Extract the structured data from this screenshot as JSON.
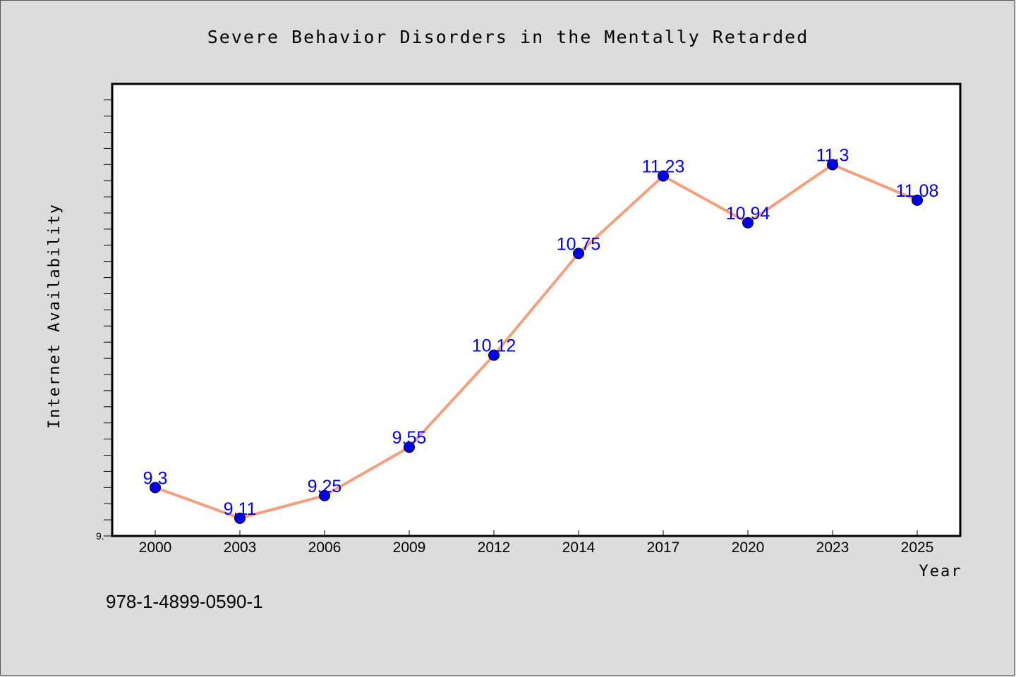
{
  "chart_data": {
    "type": "line",
    "title": "Severe Behavior Disorders in the Mentally Retarded",
    "xlabel": "Year",
    "ylabel": "Internet Availability",
    "categories": [
      "2000",
      "2003",
      "2006",
      "2009",
      "2012",
      "2014",
      "2017",
      "2020",
      "2023",
      "2025"
    ],
    "series": [
      {
        "values": [
          9.3,
          9.11,
          9.25,
          9.55,
          10.12,
          10.75,
          11.23,
          10.94,
          11.3,
          11.08
        ],
        "labels": [
          "9.3",
          "9.11",
          "9.25",
          "9.55",
          "10.12",
          "10.75",
          "11.23",
          "10.94",
          "11.3",
          "11.08"
        ],
        "line_color": "#f4a07e",
        "marker_color": "#0000ee"
      }
    ],
    "y_tick_label": "9.",
    "ylim": [
      9.0,
      11.8
    ],
    "grid": false
  },
  "footer": {
    "text": "978-1-4899-0590-1"
  }
}
